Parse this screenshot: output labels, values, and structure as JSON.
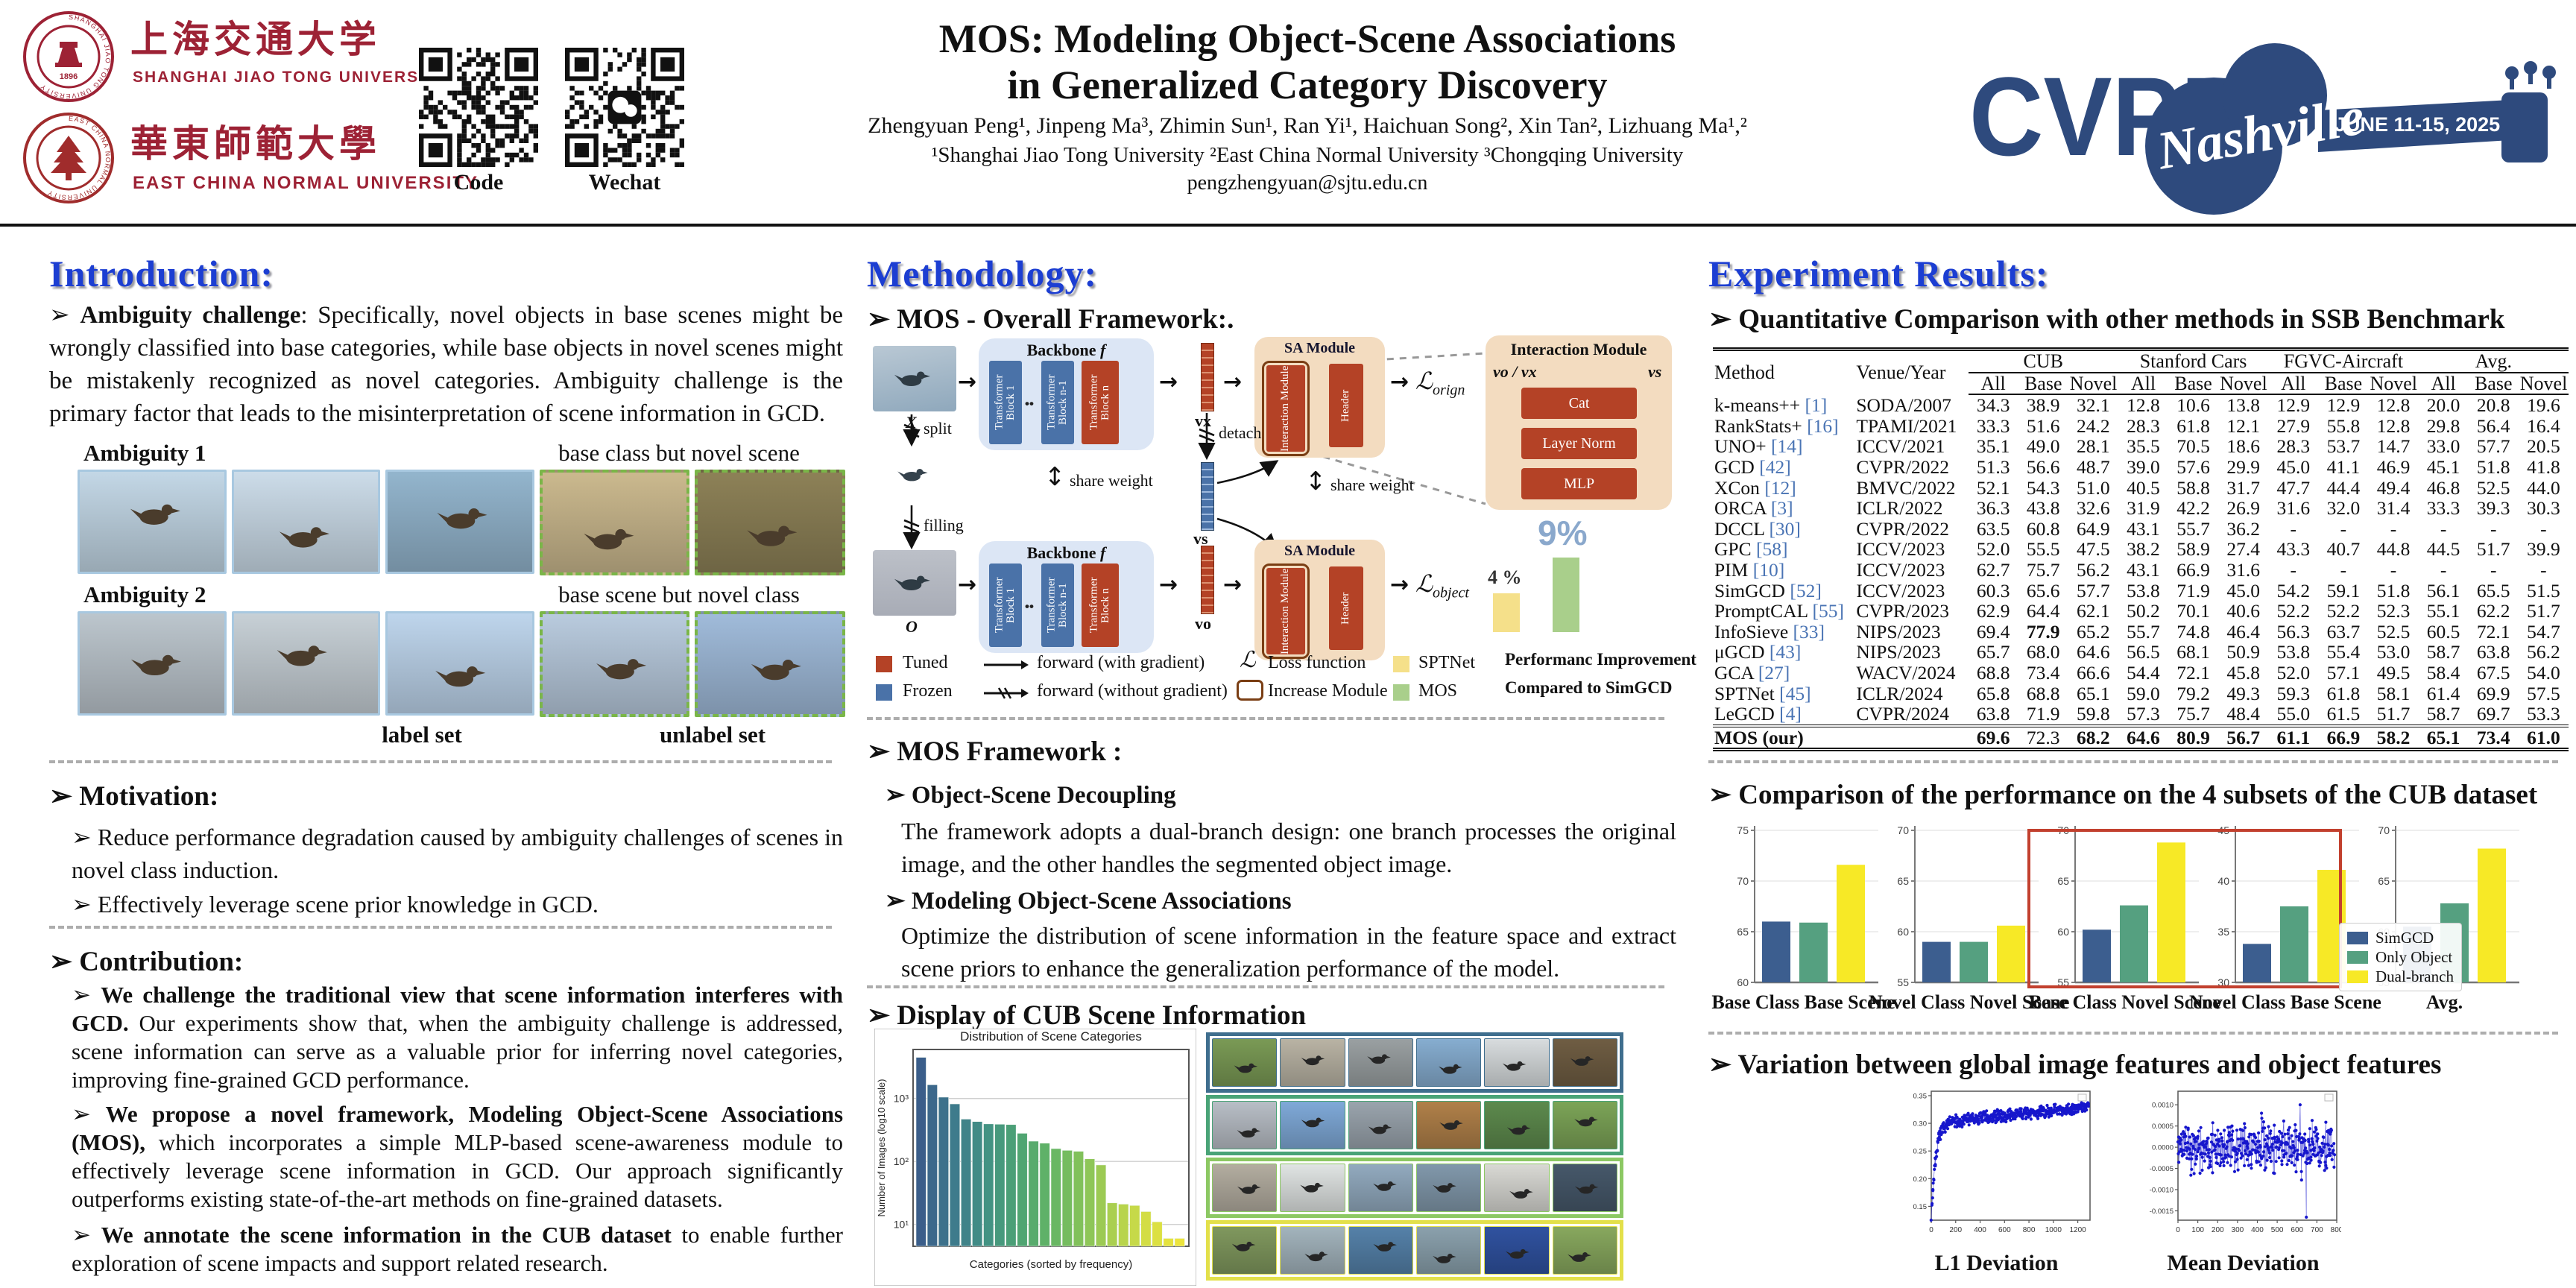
{
  "ui": {
    "bullet": "➢"
  },
  "header": {
    "sjtu_cn": "上海交通大学",
    "sjtu_en": "SHANGHAI JIAO TONG UNIVERSITY",
    "sjtu_year": "1896",
    "ecnu_cn": "華東師範大學",
    "ecnu_en": "EAST CHINA NORMAL UNIVERSITY",
    "qr_code_label": "Code",
    "qr_wechat_label": "Wechat",
    "title1": "MOS: Modeling Object-Scene Associations",
    "title2": "in Generalized Category Discovery",
    "authors": "Zhengyuan Peng¹, Jinpeng Ma³, Zhimin Sun¹, Ran Yi¹, Haichuan Song², Xin Tan², Lizhuang Ma¹,²",
    "affiliations": "¹Shanghai Jiao Tong University ²East China Normal University ³Chongqing University",
    "email": "pengzhengyuan@sjtu.edu.cn",
    "cvpr": "CVPR",
    "city": "Nashville",
    "dates": "JUNE 11-15, 2025"
  },
  "intro": {
    "heading": "Introduction:",
    "ambiguity_bold": "Ambiguity challenge",
    "ambiguity_rest": ": Specifically, novel objects in base scenes might be wrongly classified into base categories, while base objects in novel scenes might be mistakenly recognized as novel categories. Ambiguity challenge is the primary factor that leads to the misinterpretation of scene information in GCD.",
    "fig": {
      "rows": [
        {
          "label": "Ambiguity 1",
          "caption": "base class but novel scene",
          "cells": [
            {
              "bg": "#c3d7e6"
            },
            {
              "bg": "#ccdce9"
            },
            {
              "bg": "#93b5cd"
            },
            {
              "bg": "#cbb98e",
              "novel": true
            },
            {
              "bg": "#8d8157",
              "novel": true
            }
          ]
        },
        {
          "label": "Ambiguity 2",
          "caption": "base scene but novel class",
          "cells": [
            {
              "bg": "#bcc6cd"
            },
            {
              "bg": "#c7d0d6"
            },
            {
              "bg": "#bed5ec"
            },
            {
              "bg": "#b9cbde",
              "novel": true
            },
            {
              "bg": "#a0bbda",
              "novel": true
            }
          ]
        }
      ],
      "label_set": "label set",
      "unlabel_set": "unlabel set"
    },
    "motivation": {
      "heading": "Motivation:",
      "items": [
        "Reduce performance degradation caused by ambiguity challenges of scenes in novel class induction.",
        "Effectively leverage scene prior knowledge in GCD."
      ]
    },
    "contribution": {
      "heading": "Contribution:",
      "items": [
        {
          "bold": "We challenge the traditional view that scene information interferes with GCD.",
          "rest": " Our experiments show that, when the ambiguity challenge is addressed, scene information can serve as a valuable prior for inferring novel categories,  improving fine-grained GCD performance."
        },
        {
          "bold": "We propose a novel framework, Modeling Object-Scene Associations (MOS),",
          "rest": " which incorporates a simple MLP-based scene-awareness module to effectively leverage scene information in GCD. Our approach significantly outperforms existing state-of-the-art methods on fine-grained datasets."
        },
        {
          "bold": "We annotate the scene information in the CUB dataset",
          "rest": " to enable further exploration of scene impacts and support related research."
        }
      ]
    }
  },
  "method": {
    "heading": "Methodology:",
    "framework_heading": "MOS - Overall Framework:.",
    "diagram": {
      "backbone": "Backbone",
      "f": "f",
      "blocks": [
        "Transformer Block 1",
        "Transformer Block n-1",
        "Transformer Block n"
      ],
      "dots": "••",
      "sa": "SA Module",
      "im": "Interaction Module",
      "header": "Header",
      "loss": "ℒ",
      "orign": "orign",
      "object": "object",
      "vx": "vx",
      "vs": "vs",
      "vo": "vo",
      "x": "X",
      "o": "O",
      "split": "split",
      "filling": "filling",
      "detach": "detach",
      "share": "share weight",
      "detail_title": "Interaction Module",
      "vovx": "vo / vx",
      "vs2": "vs",
      "cat": "Cat",
      "ln": "Layer Norm",
      "mlp": "MLP",
      "pct4": "4 %",
      "pct9": "9%",
      "legend": {
        "tuned": "Tuned",
        "frozen": "Frozen",
        "fwd": "forward (with gradient)",
        "fwd_ng": "forward (without gradient)",
        "loss": "Loss function",
        "increase": "Increase Module",
        "sptnet": "SPTNet",
        "mos": "MOS",
        "perf1": "Performanc Improvement",
        "perf2": "Compared to SimGCD"
      }
    },
    "framework_section": {
      "heading": "MOS Framework :",
      "sub1": "Object-Scene Decoupling",
      "p1": "The framework adopts a dual-branch design: one branch processes the original image, and the other handles the segmented object image.",
      "sub2": "Modeling Object-Scene Associations",
      "p2": "Optimize the distribution of scene information in the feature space and extract scene priors to enhance the generalization performance of the model."
    },
    "display_heading": "Display of CUB Scene Information"
  },
  "cub_grid": {
    "rows": [
      {
        "border": "#3f6e8e",
        "cells": [
          "#7a9a55",
          "#b9b3a4",
          "#9aa0a2",
          "#86add0",
          "#d8dcde",
          "#6f5d43"
        ]
      },
      {
        "border": "#49a377",
        "cells": [
          "#b8bec6",
          "#7fa9d8",
          "#9aa4ad",
          "#b08049",
          "#5d8a4d",
          "#7ca457"
        ]
      },
      {
        "border": "#8cc863",
        "cells": [
          "#b3ada0",
          "#e0e4e3",
          "#92aabf",
          "#8198ab",
          "#d9d9d4",
          "#46586a"
        ]
      },
      {
        "border": "#e3e04a",
        "cells": [
          "#80985e",
          "#a3b4bd",
          "#5581a9",
          "#8ba1ad",
          "#3052a0",
          "#88a85e"
        ]
      }
    ]
  },
  "results": {
    "heading": "Experiment Results:",
    "table_heading": "Quantitative Comparison with other methods in SSB Benchmark",
    "subsets_heading": "Comparison of the performance on the 4 subsets of the CUB dataset",
    "variation_heading": "Variation between global image features and object features",
    "table": {
      "col_method": "Method",
      "col_venue": "Venue/Year",
      "groups": [
        "CUB",
        "Stanford Cars",
        "FGVC-Aircraft",
        "Avg."
      ],
      "subcols": [
        "All",
        "Base",
        "Novel"
      ],
      "rows": [
        {
          "method": "k-means++",
          "ref": "[1]",
          "venue": "SODA/2007",
          "vals": [
            "34.3",
            "38.9",
            "32.1",
            "12.8",
            "10.6",
            "13.8",
            "12.9",
            "12.9",
            "12.8",
            "20.0",
            "20.8",
            "19.6"
          ],
          "bold": []
        },
        {
          "method": "RankStats+",
          "ref": "[16]",
          "venue": "TPAMI/2021",
          "vals": [
            "33.3",
            "51.6",
            "24.2",
            "28.3",
            "61.8",
            "12.1",
            "27.9",
            "55.8",
            "12.8",
            "29.8",
            "56.4",
            "16.4"
          ],
          "bold": []
        },
        {
          "method": "UNO+",
          "ref": "[14]",
          "venue": "ICCV/2021",
          "vals": [
            "35.1",
            "49.0",
            "28.1",
            "35.5",
            "70.5",
            "18.6",
            "28.3",
            "53.7",
            "14.7",
            "33.0",
            "57.7",
            "20.5"
          ],
          "bold": []
        },
        {
          "method": "GCD",
          "ref": "[42]",
          "venue": "CVPR/2022",
          "vals": [
            "51.3",
            "56.6",
            "48.7",
            "39.0",
            "57.6",
            "29.9",
            "45.0",
            "41.1",
            "46.9",
            "45.1",
            "51.8",
            "41.8"
          ],
          "bold": []
        },
        {
          "method": "XCon",
          "ref": "[12]",
          "venue": "BMVC/2022",
          "vals": [
            "52.1",
            "54.3",
            "51.0",
            "40.5",
            "58.8",
            "31.7",
            "47.7",
            "44.4",
            "49.4",
            "46.8",
            "52.5",
            "44.0"
          ],
          "bold": []
        },
        {
          "method": "ORCA",
          "ref": "[3]",
          "venue": "ICLR/2022",
          "vals": [
            "36.3",
            "43.8",
            "32.6",
            "31.9",
            "42.2",
            "26.9",
            "31.6",
            "32.0",
            "31.4",
            "33.3",
            "39.3",
            "30.3"
          ],
          "bold": []
        },
        {
          "method": "DCCL",
          "ref": "[30]",
          "venue": "CVPR/2022",
          "vals": [
            "63.5",
            "60.8",
            "64.9",
            "43.1",
            "55.7",
            "36.2",
            "-",
            "-",
            "-",
            "-",
            "-",
            "-"
          ],
          "bold": []
        },
        {
          "method": "GPC",
          "ref": "[58]",
          "venue": "ICCV/2023",
          "vals": [
            "52.0",
            "55.5",
            "47.5",
            "38.2",
            "58.9",
            "27.4",
            "43.3",
            "40.7",
            "44.8",
            "44.5",
            "51.7",
            "39.9"
          ],
          "bold": []
        },
        {
          "method": "PIM",
          "ref": "[10]",
          "venue": "ICCV/2023",
          "vals": [
            "62.7",
            "75.7",
            "56.2",
            "43.1",
            "66.9",
            "31.6",
            "-",
            "-",
            "-",
            "-",
            "-",
            "-"
          ],
          "bold": []
        },
        {
          "method": "SimGCD",
          "ref": "[52]",
          "venue": "ICCV/2023",
          "vals": [
            "60.3",
            "65.6",
            "57.7",
            "53.8",
            "71.9",
            "45.0",
            "54.2",
            "59.1",
            "51.8",
            "56.1",
            "65.5",
            "51.5"
          ],
          "bold": []
        },
        {
          "method": "PromptCAL",
          "ref": "[55]",
          "venue": "CVPR/2023",
          "vals": [
            "62.9",
            "64.4",
            "62.1",
            "50.2",
            "70.1",
            "40.6",
            "52.2",
            "52.2",
            "52.3",
            "55.1",
            "62.2",
            "51.7"
          ],
          "bold": []
        },
        {
          "method": "InfoSieve",
          "ref": "[33]",
          "venue": "NIPS/2023",
          "vals": [
            "69.4",
            "77.9",
            "65.2",
            "55.7",
            "74.8",
            "46.4",
            "56.3",
            "63.7",
            "52.5",
            "60.5",
            "72.1",
            "54.7"
          ],
          "bold": [
            1
          ]
        },
        {
          "method": "μGCD",
          "ref": "[43]",
          "venue": "NIPS/2023",
          "vals": [
            "65.7",
            "68.0",
            "64.6",
            "56.5",
            "68.1",
            "50.9",
            "53.8",
            "55.4",
            "53.0",
            "58.7",
            "63.8",
            "56.2"
          ],
          "bold": []
        },
        {
          "method": "GCA",
          "ref": "[27]",
          "venue": "WACV/2024",
          "vals": [
            "68.8",
            "73.4",
            "66.6",
            "54.4",
            "72.1",
            "45.8",
            "52.0",
            "57.1",
            "49.5",
            "58.4",
            "67.5",
            "54.0"
          ],
          "bold": []
        },
        {
          "method": "SPTNet",
          "ref": "[45]",
          "venue": "ICLR/2024",
          "vals": [
            "65.8",
            "68.8",
            "65.1",
            "59.0",
            "79.2",
            "49.3",
            "59.3",
            "61.8",
            "58.1",
            "61.4",
            "69.9",
            "57.5"
          ],
          "bold": []
        },
        {
          "method": "LeGCD",
          "ref": "[4]",
          "venue": "CVPR/2024",
          "vals": [
            "63.8",
            "71.9",
            "59.8",
            "57.3",
            "75.7",
            "48.4",
            "55.0",
            "61.5",
            "51.7",
            "58.7",
            "69.7",
            "53.3"
          ],
          "bold": []
        }
      ],
      "mos_row": {
        "method": "MOS (our)",
        "ref": "",
        "venue": "",
        "vals": [
          "69.6",
          "72.3",
          "68.2",
          "64.6",
          "80.9",
          "56.7",
          "61.1",
          "66.9",
          "58.2",
          "65.1",
          "73.4",
          "61.0"
        ],
        "bold": [
          0,
          2,
          3,
          4,
          5,
          6,
          7,
          8,
          9,
          10,
          11
        ]
      }
    },
    "scatter_captions": [
      "L1 Deviation",
      "Mean Deviation"
    ]
  },
  "chart_data": [
    {
      "id": "scene_distribution",
      "type": "bar",
      "title": "Distribution of Scene Categories",
      "xlabel": "Categories (sorted by frequency)",
      "ylabel": "Number of Images (log10 scale)",
      "yscale": "log",
      "ylim": [
        4.5,
        6000
      ],
      "yticks": [
        10,
        100,
        1000
      ],
      "ytick_labels": [
        "10¹",
        "10²",
        "10³"
      ],
      "values": [
        4500,
        1650,
        1050,
        820,
        470,
        430,
        395,
        390,
        385,
        280,
        210,
        195,
        160,
        150,
        145,
        110,
        88,
        22,
        21,
        20,
        16,
        11,
        6,
        6
      ],
      "palette": [
        "#3b5e8a",
        "#3e7a8c",
        "#429184",
        "#4da374",
        "#63b465",
        "#85c35a",
        "#aed04f",
        "#d5de45",
        "#ece43c"
      ]
    },
    {
      "id": "cub_subsets",
      "type": "bar-group",
      "series_names": [
        "SimGCD",
        "Only Object",
        "Dual-branch"
      ],
      "colors": [
        "#3c5e8f",
        "#55a080",
        "#f7e926"
      ],
      "panels": [
        {
          "label": "Base Class Base Scene",
          "ylim": [
            60,
            75
          ],
          "yticks": [
            60,
            65,
            70,
            75
          ],
          "values": [
            66.0,
            65.9,
            71.6
          ]
        },
        {
          "label": "Novel Class Novel Scene",
          "ylim": [
            55,
            70
          ],
          "yticks": [
            55,
            60,
            65,
            70
          ],
          "values": [
            59.0,
            59.0,
            60.6
          ]
        },
        {
          "label": "Base Class Novel Scene",
          "ylim": [
            55,
            70
          ],
          "yticks": [
            55,
            60,
            65,
            70
          ],
          "values": [
            60.2,
            62.6,
            68.8
          ],
          "highlight": true
        },
        {
          "label": "Novel Class Base Scene",
          "ylim": [
            30,
            45
          ],
          "yticks": [
            30,
            35,
            40,
            45
          ],
          "values": [
            33.8,
            37.5,
            41.1
          ],
          "highlight": true
        },
        {
          "label": "Avg.",
          "ylim": [
            55,
            70
          ],
          "yticks": [
            55,
            60,
            65,
            70
          ],
          "values": [
            60.5,
            62.8,
            68.2
          ]
        }
      ],
      "legend": [
        "SimGCD",
        "Only Object",
        "Dual-branch"
      ],
      "legend_position": "right-overlap"
    },
    {
      "id": "l1_deviation",
      "type": "scatter",
      "title": "L1 Deviation",
      "color": "#1616cc",
      "n": 520,
      "pattern": "rising-saturation",
      "xlim": [
        0,
        1300
      ],
      "ylim": [
        0.125,
        0.358
      ],
      "xticks": [
        0,
        200,
        400,
        600,
        800,
        1000,
        1200
      ],
      "yticks": [
        0.15,
        0.2,
        0.25,
        0.3,
        0.35
      ],
      "trend": "starts ~0.13, steep rise before x=100, plateau ~0.30 drifting up to ~0.33"
    },
    {
      "id": "mean_deviation",
      "type": "scatter",
      "title": "Mean Deviation",
      "color": "#1616cc",
      "n": 430,
      "pattern": "noise-around-zero",
      "xlim": [
        0,
        800
      ],
      "ylim": [
        -0.00172,
        0.00132
      ],
      "xticks": [
        0,
        100,
        200,
        300,
        400,
        500,
        600,
        700,
        800
      ],
      "yticks": [
        -0.0015,
        -0.001,
        -0.0005,
        0.0,
        0.0005,
        0.001
      ],
      "trend": "zero-mean noise, spread ~±0.0007, outliers to -0.0016 and +0.0013"
    }
  ]
}
